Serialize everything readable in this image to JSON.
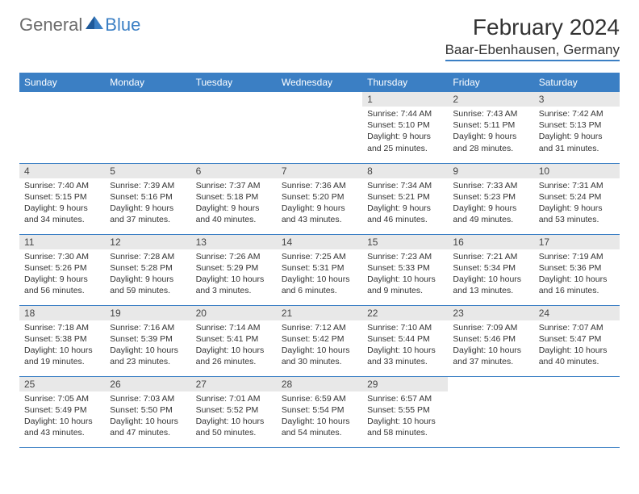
{
  "logo": {
    "general": "General",
    "blue": "Blue"
  },
  "title": "February 2024",
  "location": "Baar-Ebenhausen, Germany",
  "colors": {
    "header_bg": "#3b7fc4",
    "header_fg": "#ffffff",
    "daynum_bg": "#e8e8e8",
    "border": "#3b7fc4",
    "text": "#333333",
    "logo_gray": "#6b6b6b",
    "logo_blue": "#3b7fc4"
  },
  "weekdays": [
    "Sunday",
    "Monday",
    "Tuesday",
    "Wednesday",
    "Thursday",
    "Friday",
    "Saturday"
  ],
  "weeks": [
    [
      null,
      null,
      null,
      null,
      {
        "n": "1",
        "sunrise": "7:44 AM",
        "sunset": "5:10 PM",
        "daylight": "9 hours and 25 minutes."
      },
      {
        "n": "2",
        "sunrise": "7:43 AM",
        "sunset": "5:11 PM",
        "daylight": "9 hours and 28 minutes."
      },
      {
        "n": "3",
        "sunrise": "7:42 AM",
        "sunset": "5:13 PM",
        "daylight": "9 hours and 31 minutes."
      }
    ],
    [
      {
        "n": "4",
        "sunrise": "7:40 AM",
        "sunset": "5:15 PM",
        "daylight": "9 hours and 34 minutes."
      },
      {
        "n": "5",
        "sunrise": "7:39 AM",
        "sunset": "5:16 PM",
        "daylight": "9 hours and 37 minutes."
      },
      {
        "n": "6",
        "sunrise": "7:37 AM",
        "sunset": "5:18 PM",
        "daylight": "9 hours and 40 minutes."
      },
      {
        "n": "7",
        "sunrise": "7:36 AM",
        "sunset": "5:20 PM",
        "daylight": "9 hours and 43 minutes."
      },
      {
        "n": "8",
        "sunrise": "7:34 AM",
        "sunset": "5:21 PM",
        "daylight": "9 hours and 46 minutes."
      },
      {
        "n": "9",
        "sunrise": "7:33 AM",
        "sunset": "5:23 PM",
        "daylight": "9 hours and 49 minutes."
      },
      {
        "n": "10",
        "sunrise": "7:31 AM",
        "sunset": "5:24 PM",
        "daylight": "9 hours and 53 minutes."
      }
    ],
    [
      {
        "n": "11",
        "sunrise": "7:30 AM",
        "sunset": "5:26 PM",
        "daylight": "9 hours and 56 minutes."
      },
      {
        "n": "12",
        "sunrise": "7:28 AM",
        "sunset": "5:28 PM",
        "daylight": "9 hours and 59 minutes."
      },
      {
        "n": "13",
        "sunrise": "7:26 AM",
        "sunset": "5:29 PM",
        "daylight": "10 hours and 3 minutes."
      },
      {
        "n": "14",
        "sunrise": "7:25 AM",
        "sunset": "5:31 PM",
        "daylight": "10 hours and 6 minutes."
      },
      {
        "n": "15",
        "sunrise": "7:23 AM",
        "sunset": "5:33 PM",
        "daylight": "10 hours and 9 minutes."
      },
      {
        "n": "16",
        "sunrise": "7:21 AM",
        "sunset": "5:34 PM",
        "daylight": "10 hours and 13 minutes."
      },
      {
        "n": "17",
        "sunrise": "7:19 AM",
        "sunset": "5:36 PM",
        "daylight": "10 hours and 16 minutes."
      }
    ],
    [
      {
        "n": "18",
        "sunrise": "7:18 AM",
        "sunset": "5:38 PM",
        "daylight": "10 hours and 19 minutes."
      },
      {
        "n": "19",
        "sunrise": "7:16 AM",
        "sunset": "5:39 PM",
        "daylight": "10 hours and 23 minutes."
      },
      {
        "n": "20",
        "sunrise": "7:14 AM",
        "sunset": "5:41 PM",
        "daylight": "10 hours and 26 minutes."
      },
      {
        "n": "21",
        "sunrise": "7:12 AM",
        "sunset": "5:42 PM",
        "daylight": "10 hours and 30 minutes."
      },
      {
        "n": "22",
        "sunrise": "7:10 AM",
        "sunset": "5:44 PM",
        "daylight": "10 hours and 33 minutes."
      },
      {
        "n": "23",
        "sunrise": "7:09 AM",
        "sunset": "5:46 PM",
        "daylight": "10 hours and 37 minutes."
      },
      {
        "n": "24",
        "sunrise": "7:07 AM",
        "sunset": "5:47 PM",
        "daylight": "10 hours and 40 minutes."
      }
    ],
    [
      {
        "n": "25",
        "sunrise": "7:05 AM",
        "sunset": "5:49 PM",
        "daylight": "10 hours and 43 minutes."
      },
      {
        "n": "26",
        "sunrise": "7:03 AM",
        "sunset": "5:50 PM",
        "daylight": "10 hours and 47 minutes."
      },
      {
        "n": "27",
        "sunrise": "7:01 AM",
        "sunset": "5:52 PM",
        "daylight": "10 hours and 50 minutes."
      },
      {
        "n": "28",
        "sunrise": "6:59 AM",
        "sunset": "5:54 PM",
        "daylight": "10 hours and 54 minutes."
      },
      {
        "n": "29",
        "sunrise": "6:57 AM",
        "sunset": "5:55 PM",
        "daylight": "10 hours and 58 minutes."
      },
      null,
      null
    ]
  ],
  "labels": {
    "sunrise": "Sunrise:",
    "sunset": "Sunset:",
    "daylight": "Daylight:"
  }
}
